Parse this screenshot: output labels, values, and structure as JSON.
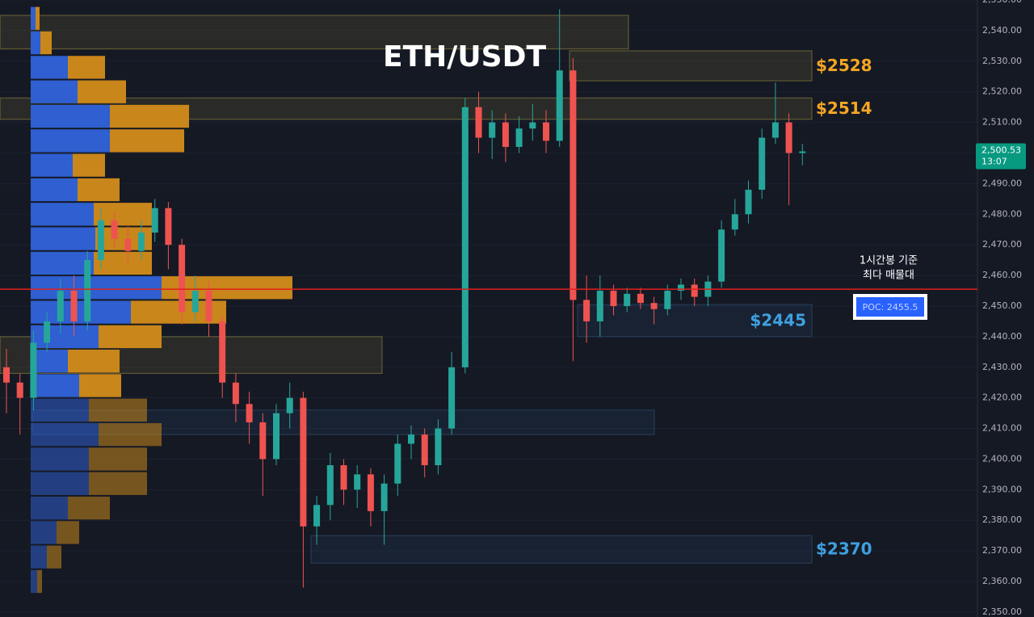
{
  "chart_data": {
    "type": "candlestick",
    "title": "ETH/USDT",
    "up_color": "#26a69a",
    "down_color": "#ef5350",
    "grid": true,
    "ylim": [
      2348.4,
      2550
    ],
    "yticks": [
      {
        "value": 2350,
        "label": "2,350.00"
      },
      {
        "value": 2360,
        "label": "2,360.00"
      },
      {
        "value": 2370,
        "label": "2,370.00"
      },
      {
        "value": 2380,
        "label": "2,380.00"
      },
      {
        "value": 2390,
        "label": "2,390.00"
      },
      {
        "value": 2400,
        "label": "2,400.00"
      },
      {
        "value": 2410,
        "label": "2,410.00"
      },
      {
        "value": 2420,
        "label": "2,420.00"
      },
      {
        "value": 2430,
        "label": "2,430.00"
      },
      {
        "value": 2440,
        "label": "2,440.00"
      },
      {
        "value": 2450,
        "label": "2,450.00"
      },
      {
        "value": 2460,
        "label": "2,460.00"
      },
      {
        "value": 2470,
        "label": "2,470.00"
      },
      {
        "value": 2480,
        "label": "2,480.00"
      },
      {
        "value": 2490,
        "label": "2,490.00"
      },
      {
        "value": 2500,
        "label": "2,500.00"
      },
      {
        "value": 2510,
        "label": "2,510.00"
      },
      {
        "value": 2520,
        "label": "2,520.00"
      },
      {
        "value": 2530,
        "label": "2,530.00"
      },
      {
        "value": 2540,
        "label": "2,540.00"
      },
      {
        "value": 2550,
        "label": "2,550.00"
      }
    ],
    "open": [
      2430,
      2425,
      2420,
      2438,
      2445,
      2455,
      2445,
      2465,
      2478,
      2472,
      2468,
      2474,
      2482,
      2470,
      2448,
      2455,
      2445,
      2425,
      2418,
      2412,
      2400,
      2415,
      2420,
      2378,
      2385,
      2398,
      2390,
      2395,
      2383,
      2392,
      2405,
      2408,
      2398,
      2410,
      2430,
      2515,
      2505,
      2510,
      2502,
      2508,
      2510,
      2504,
      2527,
      2452,
      2445,
      2455,
      2450,
      2454,
      2451,
      2449,
      2455,
      2457,
      2453,
      2458,
      2475,
      2480,
      2488,
      2505,
      2510,
      2500
    ],
    "high": [
      2436,
      2428,
      2442,
      2448,
      2459,
      2460,
      2468,
      2482,
      2481,
      2476,
      2478,
      2485,
      2484,
      2472,
      2460,
      2458,
      2447,
      2428,
      2422,
      2415,
      2418,
      2425,
      2422,
      2388,
      2402,
      2400,
      2398,
      2397,
      2395,
      2408,
      2411,
      2410,
      2413,
      2435,
      2518,
      2520,
      2514,
      2513,
      2512,
      2516,
      2514,
      2547,
      2531,
      2460,
      2460,
      2457,
      2456,
      2456,
      2453,
      2457,
      2459,
      2459,
      2460,
      2478,
      2485,
      2491,
      2508,
      2523,
      2513,
      2503
    ],
    "low": [
      2415,
      2408,
      2416,
      2435,
      2441,
      2440,
      2442,
      2462,
      2469,
      2464,
      2465,
      2471,
      2462,
      2444,
      2445,
      2440,
      2420,
      2412,
      2405,
      2388,
      2398,
      2410,
      2358,
      2372,
      2380,
      2385,
      2384,
      2378,
      2372,
      2388,
      2400,
      2394,
      2395,
      2408,
      2428,
      2500,
      2498,
      2497,
      2500,
      2504,
      2500,
      2502,
      2432,
      2438,
      2440,
      2447,
      2448,
      2449,
      2444,
      2447,
      2452,
      2450,
      2450,
      2456,
      2473,
      2477,
      2485,
      2503,
      2483,
      2496
    ],
    "close": [
      2425,
      2420,
      2438,
      2445,
      2455,
      2445,
      2465,
      2478,
      2472,
      2468,
      2474,
      2482,
      2470,
      2448,
      2455,
      2445,
      2425,
      2418,
      2412,
      2400,
      2415,
      2420,
      2378,
      2385,
      2398,
      2390,
      2395,
      2383,
      2392,
      2405,
      2408,
      2398,
      2410,
      2430,
      2515,
      2505,
      2510,
      2502,
      2508,
      2510,
      2504,
      2527,
      2452,
      2445,
      2455,
      2450,
      2454,
      2451,
      2449,
      2455,
      2457,
      2453,
      2458,
      2475,
      2480,
      2488,
      2505,
      2510,
      2500,
      2500.53
    ],
    "volume_profile": {
      "buy_color": "#2f5fd0",
      "sell_color": "#c9861a",
      "bins": [
        2356,
        2364,
        2372,
        2380,
        2388,
        2396,
        2404,
        2412,
        2420,
        2428,
        2436,
        2444,
        2452,
        2460,
        2468,
        2476,
        2484,
        2492,
        2500,
        2508,
        2516,
        2524,
        2532,
        2540,
        2548
      ],
      "buy": [
        8,
        20,
        32,
        46,
        72,
        72,
        84,
        72,
        60,
        46,
        84,
        124,
        162,
        78,
        80,
        78,
        58,
        52,
        98,
        98,
        58,
        46,
        12,
        6
      ],
      "sell": [
        6,
        18,
        28,
        52,
        72,
        72,
        78,
        72,
        52,
        64,
        78,
        118,
        162,
        72,
        70,
        72,
        52,
        40,
        92,
        98,
        60,
        46,
        14,
        5
      ]
    },
    "zones": [
      {
        "range": [
          2534,
          2545
        ],
        "color": "#c9b44a"
      },
      {
        "range": [
          2523.6,
          2533.4
        ],
        "color": "#c9b44a",
        "label": "$2528",
        "label_color": "#f5a623"
      },
      {
        "range": [
          2511,
          2518
        ],
        "color": "#c9b44a",
        "label": "$2514",
        "label_color": "#f5a623"
      },
      {
        "range": [
          2440,
          2450.5
        ],
        "color": "#3a6a9a",
        "label": "$2445",
        "label_color": "#3ea0e0"
      },
      {
        "range": [
          2428,
          2440
        ],
        "color": "#c9b44a"
      },
      {
        "range": [
          2408,
          2416
        ],
        "color": "#3a6a9a"
      },
      {
        "range": [
          2366,
          2375
        ],
        "color": "#3a6a9a",
        "label": "$2370",
        "label_color": "#3ea0e0"
      }
    ],
    "poc": {
      "value": 2455.5,
      "label": "POC: 2455.5",
      "note": [
        "1시간봉 기준",
        "최다 매물대"
      ],
      "color": "#e0201c"
    },
    "last_price": {
      "value": 2500.53,
      "label": "2,500.53",
      "countdown": "13:07",
      "color": "#089981"
    }
  }
}
